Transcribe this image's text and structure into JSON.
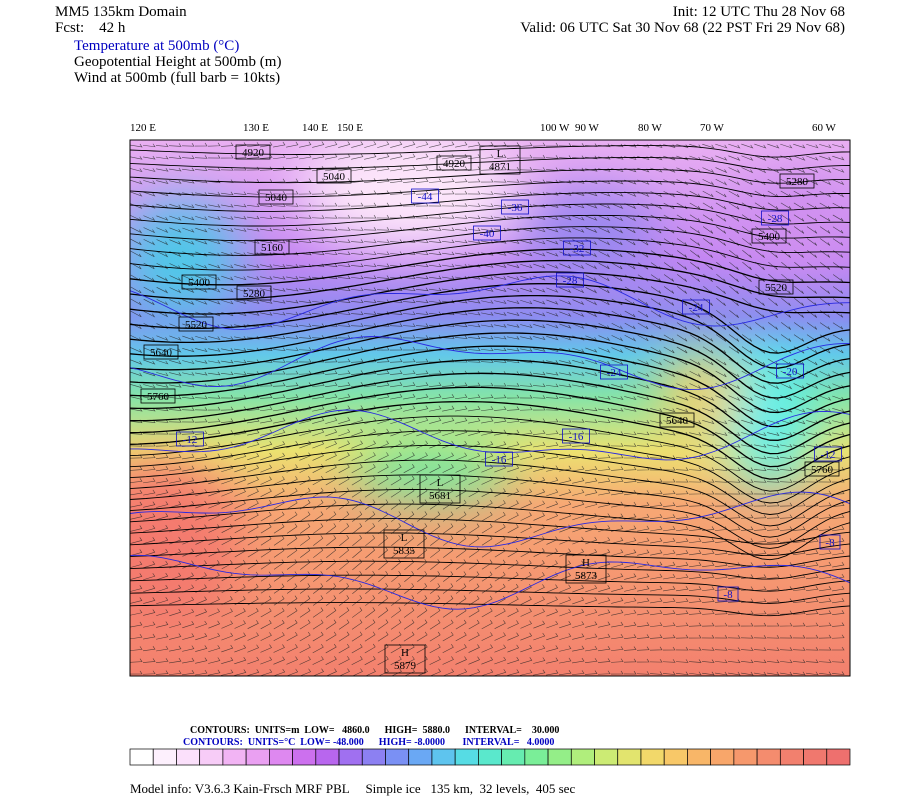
{
  "header": {
    "title": "MM5 135km Domain",
    "forecast": "Fcst:    42 h",
    "init": "Init: 12 UTC Thu 28 Nov 68",
    "valid": "Valid: 06 UTC Sat 30 Nov 68 (22 PST Fri 29 Nov 68)",
    "fields": [
      "Temperature at 500mb (°C)",
      "Geopotential Height at 500mb (m)",
      "Wind at 500mb (full barb = 10kts)"
    ]
  },
  "map": {
    "longitude_labels": [
      "120 E",
      "130 E",
      "140 E",
      "150 E",
      "100 W",
      "90 W",
      "80 W",
      "70 W",
      "60 W"
    ],
    "height_labels": [
      4920,
      5040,
      5040,
      4920,
      5160,
      5400,
      5280,
      5520,
      5640,
      5760,
      5280,
      5400,
      5520,
      5640,
      5760
    ],
    "temperature_labels": [
      -44,
      -36,
      -40,
      -32,
      -28,
      -28,
      -24,
      -20,
      -24,
      -16,
      -16,
      -12,
      -12,
      -8,
      -8
    ],
    "centers": [
      {
        "letter": "L",
        "value": 4871
      },
      {
        "letter": "L",
        "value": 5681
      },
      {
        "letter": "L",
        "value": 5835
      },
      {
        "letter": "H",
        "value": 5873
      },
      {
        "letter": "H",
        "value": 5879
      }
    ]
  },
  "footer": {
    "height_contours": "CONTOURS:  UNITS=m  LOW=   4860.0      HIGH=  5880.0      INTERVAL=    30.000",
    "temperature_contours": "CONTOURS:  UNITS=°C  LOW= -48.000      HIGH= -8.0000       INTERVAL=   4.0000",
    "model_info": "Model info: V3.6.3 Kain-Frsch MRF PBL     Simple ice   135 km,  32 levels,  405 sec"
  }
}
